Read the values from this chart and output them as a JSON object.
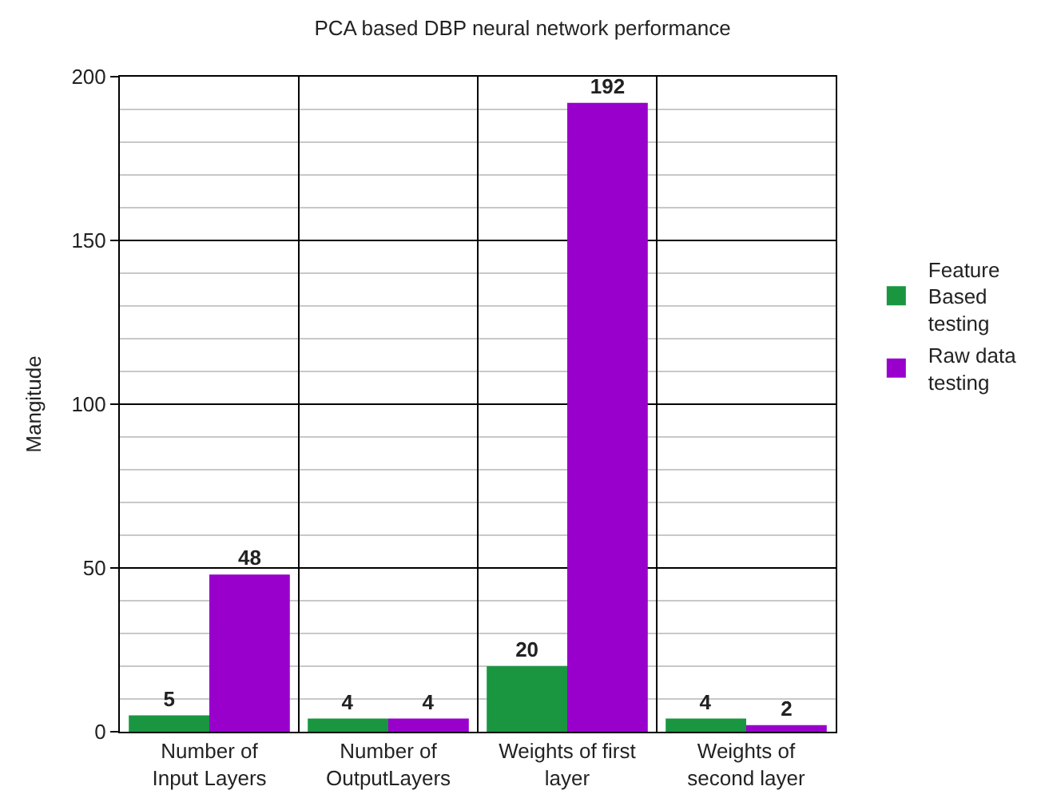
{
  "chart_data": {
    "type": "bar",
    "title": "PCA based DBP neural network performance",
    "ylabel": "Mangitude",
    "categories": [
      "Number of\nInput Layers",
      "Number of\nOutputLayers",
      "Weights of first\nlayer",
      "Weights of\nsecond layer"
    ],
    "series": [
      {
        "name": "Feature Based testing",
        "color": "#1a9641",
        "values": [
          5,
          4,
          20,
          4
        ]
      },
      {
        "name": "Raw data testing",
        "color": "#9900cc",
        "values": [
          48,
          4,
          192,
          2
        ]
      }
    ],
    "ylim": [
      0,
      200
    ],
    "yticks": [
      0,
      {
        "value": 10,
        "label": null
      },
      {
        "value": 20,
        "label": null
      },
      {
        "value": 30,
        "label": null
      },
      {
        "value": 40,
        "label": null
      },
      50,
      {
        "value": 60,
        "label": null
      },
      {
        "value": 70,
        "label": null
      },
      {
        "value": 80,
        "label": null
      },
      {
        "value": 90,
        "label": null
      },
      100,
      {
        "value": 110,
        "label": null
      },
      {
        "value": 120,
        "label": null
      },
      {
        "value": 130,
        "label": null
      },
      {
        "value": 140,
        "label": null
      },
      150,
      {
        "value": 160,
        "label": null
      },
      {
        "value": 170,
        "label": null
      },
      {
        "value": 180,
        "label": null
      },
      {
        "value": 190,
        "label": null
      },
      200
    ],
    "grid": true,
    "legend": "right",
    "data_labels": true
  }
}
